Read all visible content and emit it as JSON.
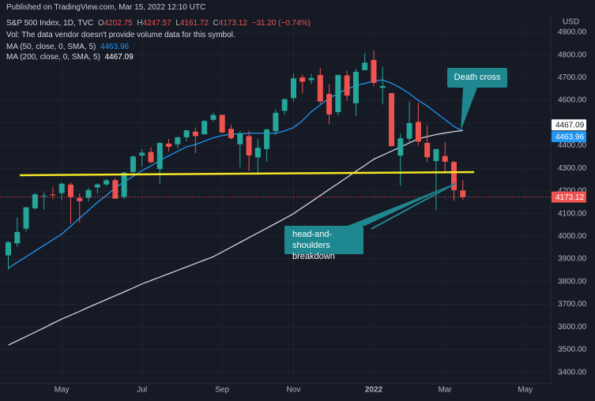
{
  "header": {
    "published": "Published on TradingView.com, Mar 15, 2022 12:10 UTC"
  },
  "chart_data": {
    "type": "candlestick",
    "legend": {
      "symbol": "S&P 500 Index, 1D, TVC",
      "open_prefix": "O",
      "high_prefix": "H",
      "low_prefix": "L",
      "close_prefix": "C",
      "change": "−31.20 (−0.74%)",
      "volume_note": "Vol: The data vendor doesn't provide volume data for this symbol."
    },
    "currency": "USD",
    "categories": [
      null,
      null,
      null,
      null,
      null,
      null,
      "May",
      null,
      null,
      null,
      null,
      null,
      null,
      null,
      null,
      "Jul",
      null,
      null,
      null,
      null,
      null,
      null,
      null,
      null,
      "Sep",
      null,
      null,
      null,
      null,
      null,
      null,
      null,
      "Nov",
      null,
      null,
      null,
      null,
      null,
      null,
      null,
      null,
      "2022",
      null,
      null,
      null,
      null,
      null,
      null,
      null,
      "Mar",
      null,
      null,
      null,
      null,
      null,
      null,
      null,
      null,
      "May",
      null,
      null
    ],
    "series": [
      {
        "name": "S&P 500 Index",
        "up_color": "#26a69a",
        "down_color": "#ef5350",
        "open": [
          3916,
          3969,
          4034,
          4124,
          4179,
          4185,
          4191,
          4228,
          4169,
          4170,
          4216,
          4229,
          4248,
          4174,
          4284,
          4356,
          4372,
          4297,
          4409,
          4406,
          4437,
          4462,
          4450,
          4514,
          4536,
          4474,
          4406,
          4442,
          4348,
          4385,
          4464,
          4554,
          4610,
          4701,
          4689,
          4712,
          4628,
          4548,
          4710,
          4587,
          4733,
          4778,
          4655,
          4632,
          4356,
          4431,
          4505,
          4412,
          4332,
          4354,
          4328,
          4202.75,
          null,
          null,
          null,
          null,
          null,
          null,
          null,
          null,
          null
        ],
        "high": [
          3978,
          4083,
          4129,
          4191,
          4194,
          4218,
          4238,
          4238,
          4189,
          4214,
          4234,
          4255,
          4257,
          4286,
          4356,
          4385,
          4393,
          4415,
          4430,
          4440,
          4468,
          4480,
          4513,
          4546,
          4536,
          4492,
          4465,
          4466,
          4429,
          4475,
          4560,
          4608,
          4718,
          4714,
          4717,
          4743,
          4672,
          4713,
          4731,
          4740,
          4808,
          4819,
          4749,
          4632,
          4453,
          4595,
          4590,
          4490,
          4386,
          4416,
          4332,
          4247.57,
          null,
          null,
          null,
          null,
          null,
          null,
          null,
          null,
          null
        ],
        "low": [
          3853,
          3955,
          4021,
          4118,
          4118,
          4164,
          4160,
          4056,
          4061,
          4154,
          4188,
          4222,
          4167,
          4164,
          4275,
          4307,
          4321,
          4233,
          4375,
          4387,
          4420,
          4367,
          4450,
          4508,
          4457,
          4427,
          4305,
          4288,
          4278,
          4329,
          4447,
          4537,
          4595,
          4630,
          4672,
          4585,
          4495,
          4532,
          4600,
          4531,
          4733,
          4662,
          4582,
          4395,
          4223,
          4414,
          4401,
          4327,
          4115,
          4279,
          4157,
          4161.72,
          null,
          null,
          null,
          null,
          null,
          null,
          null,
          null,
          null
        ],
        "close": [
          3974,
          4019,
          4128,
          4185,
          4180,
          4181,
          4232,
          4173,
          4155,
          4204,
          4229,
          4247,
          4166,
          4281,
          4352,
          4369,
          4327,
          4412,
          4395,
          4437,
          4468,
          4442,
          4509,
          4535,
          4458,
          4433,
          4455,
          4357,
          4391,
          4471,
          4545,
          4605,
          4697,
          4682,
          4698,
          4595,
          4538,
          4712,
          4621,
          4726,
          4766,
          4677,
          4663,
          4398,
          4432,
          4500,
          4418,
          4349,
          4385,
          4329,
          4204,
          4173.12,
          null,
          null,
          null,
          null,
          null,
          null,
          null,
          null,
          null
        ]
      }
    ],
    "lines": [
      {
        "name": "MA (50, close, 0, SMA, 5)",
        "color": "#2196f3",
        "values": [
          3860,
          3885,
          3910,
          3935,
          3960,
          3985,
          4010,
          4045,
          4080,
          4115,
          4150,
          4180,
          4215,
          4240,
          4265,
          4290,
          4310,
          4335,
          4355,
          4375,
          4395,
          4405,
          4420,
          4435,
          4445,
          4450,
          4452,
          4455,
          4455,
          4455,
          4455,
          4465,
          4480,
          4510,
          4550,
          4580,
          4610,
          4630,
          4650,
          4665,
          4675,
          4685,
          4690,
          4675,
          4655,
          4630,
          4600,
          4575,
          4545,
          4515,
          4485,
          4463.96,
          null,
          null,
          null,
          null,
          null,
          null,
          null,
          null,
          null
        ]
      },
      {
        "name": "MA (200, close, 0, SMA, 5)",
        "color": "#d1d4dc",
        "values": [
          3520,
          3539,
          3558,
          3577,
          3596,
          3616,
          3635,
          3652,
          3669,
          3687,
          3704,
          3721,
          3738,
          3755,
          3772,
          3790,
          3805,
          3820,
          3835,
          3850,
          3865,
          3880,
          3895,
          3910,
          3931,
          3952,
          3973,
          3994,
          4015,
          4036,
          4057,
          4078,
          4100,
          4127,
          4153,
          4180,
          4207,
          4233,
          4260,
          4287,
          4313,
          4340,
          4358,
          4376,
          4394,
          4412,
          4430,
          4440,
          4449,
          4456,
          4462,
          4467.09,
          null,
          null,
          null,
          null,
          null,
          null,
          null,
          null,
          null
        ]
      }
    ],
    "ylim": [
      3350,
      4980
    ],
    "yticks": [
      {
        "value": 3400,
        "label": "3400.00"
      },
      {
        "value": 3500,
        "label": "3500.00"
      },
      {
        "value": 3600,
        "label": "3600.00"
      },
      {
        "value": 3700,
        "label": "3700.00"
      },
      {
        "value": 3800,
        "label": "3800.00"
      },
      {
        "value": 3900,
        "label": "3900.00"
      },
      {
        "value": 4000,
        "label": "4000.00"
      },
      {
        "value": 4100,
        "label": "4100.00"
      },
      {
        "value": 4200,
        "label": "4200.00"
      },
      {
        "value": 4300,
        "label": "4300.00"
      },
      {
        "value": 4400,
        "label": "4400.00"
      },
      {
        "value": 4500,
        "label": "4500.00"
      },
      {
        "value": 4600,
        "label": "4600.00"
      },
      {
        "value": 4700,
        "label": "4700.00"
      },
      {
        "value": 4800,
        "label": "4800.00"
      },
      {
        "value": 4900,
        "label": "4900.00"
      }
    ],
    "grid": true,
    "annotations": {
      "death_cross": "Death cross",
      "breakdown": [
        "head-and-shoulders",
        "breakdown"
      ]
    }
  }
}
